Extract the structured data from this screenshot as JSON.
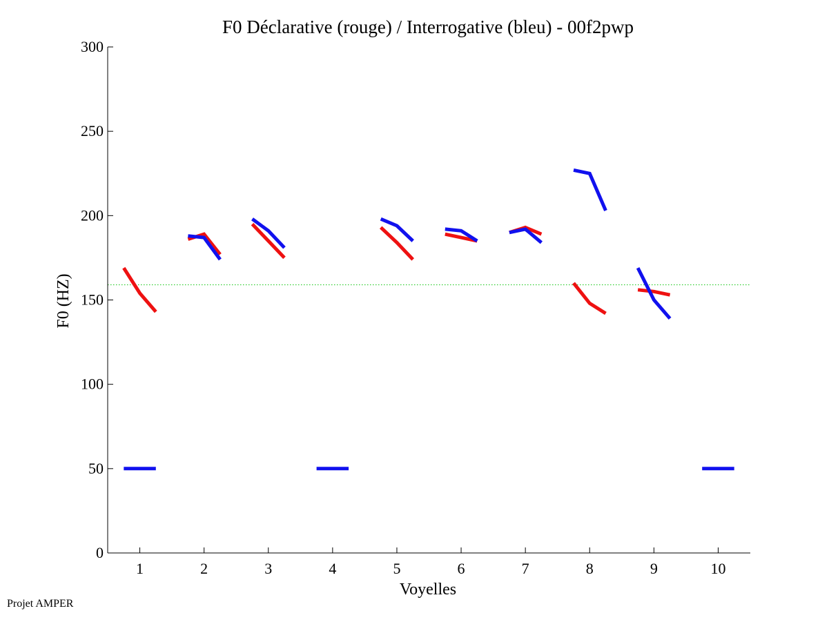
{
  "chart_data": {
    "type": "line",
    "title": "F0 Déclarative (rouge) / Interrogative (bleu) - 00f2pwp",
    "xlabel": "Voyelles",
    "ylabel": "F0 (HZ)",
    "xlim": [
      0.5,
      10.5
    ],
    "ylim": [
      0,
      300
    ],
    "xticks": [
      "1",
      "2",
      "3",
      "4",
      "5",
      "6",
      "7",
      "8",
      "9",
      "10"
    ],
    "yticks": [
      "0",
      "50",
      "100",
      "150",
      "200",
      "250",
      "300"
    ],
    "reference_line": {
      "y": 159,
      "color": "#33cc33",
      "style": "dotted"
    },
    "series": [
      {
        "name": "Déclarative",
        "color": "#ee1111",
        "segments": [
          {
            "vowel": 1,
            "x": [
              0.75,
              1.0,
              1.25
            ],
            "y": [
              169,
              154,
              143
            ]
          },
          {
            "vowel": 2,
            "x": [
              1.75,
              2.0,
              2.25
            ],
            "y": [
              186,
              189,
              177
            ]
          },
          {
            "vowel": 3,
            "x": [
              2.75,
              3.0,
              3.25
            ],
            "y": [
              195,
              185,
              175
            ]
          },
          {
            "vowel": 5,
            "x": [
              4.75,
              5.0,
              5.25
            ],
            "y": [
              193,
              184,
              174
            ]
          },
          {
            "vowel": 6,
            "x": [
              5.75,
              6.0,
              6.25
            ],
            "y": [
              189,
              187,
              185
            ]
          },
          {
            "vowel": 7,
            "x": [
              6.75,
              7.0,
              7.25
            ],
            "y": [
              190,
              193,
              189
            ]
          },
          {
            "vowel": 8,
            "x": [
              7.75,
              8.0,
              8.25
            ],
            "y": [
              160,
              148,
              142
            ]
          },
          {
            "vowel": 9,
            "x": [
              8.75,
              9.0,
              9.25
            ],
            "y": [
              156,
              155,
              153
            ]
          }
        ]
      },
      {
        "name": "Interrogative",
        "color": "#1111ee",
        "segments": [
          {
            "vowel": 1,
            "x": [
              0.75,
              1.0,
              1.25
            ],
            "y": [
              50,
              50,
              50
            ]
          },
          {
            "vowel": 2,
            "x": [
              1.75,
              2.0,
              2.25
            ],
            "y": [
              188,
              187,
              174
            ]
          },
          {
            "vowel": 3,
            "x": [
              2.75,
              3.0,
              3.25
            ],
            "y": [
              198,
              191,
              181
            ]
          },
          {
            "vowel": 4,
            "x": [
              3.75,
              4.0,
              4.25
            ],
            "y": [
              50,
              50,
              50
            ]
          },
          {
            "vowel": 5,
            "x": [
              4.75,
              5.0,
              5.25
            ],
            "y": [
              198,
              194,
              185
            ]
          },
          {
            "vowel": 6,
            "x": [
              5.75,
              6.0,
              6.25
            ],
            "y": [
              192,
              191,
              185
            ]
          },
          {
            "vowel": 7,
            "x": [
              6.75,
              7.0,
              7.25
            ],
            "y": [
              190,
              192,
              184
            ]
          },
          {
            "vowel": 8,
            "x": [
              7.75,
              8.0,
              8.25
            ],
            "y": [
              227,
              225,
              203
            ]
          },
          {
            "vowel": 9,
            "x": [
              8.75,
              9.0,
              9.25
            ],
            "y": [
              169,
              150,
              139
            ]
          },
          {
            "vowel": 10,
            "x": [
              9.75,
              10.0,
              10.25
            ],
            "y": [
              50,
              50,
              50
            ]
          }
        ]
      }
    ]
  },
  "footer": {
    "credit": "Projet AMPER"
  }
}
